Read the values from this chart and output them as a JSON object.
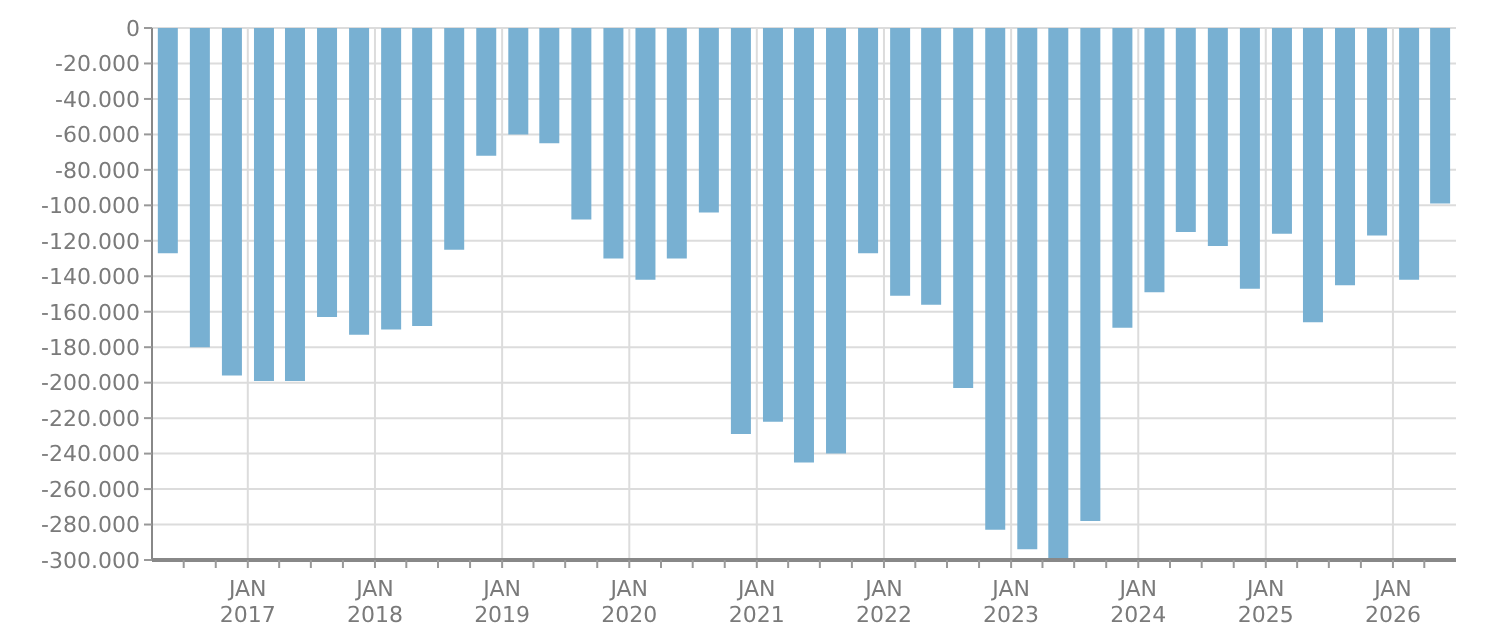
{
  "chart_data": {
    "type": "bar",
    "color": "#78b0d2",
    "grid": true,
    "x": [
      "2016-05-15",
      "2016-08-15",
      "2016-11-15",
      "2017-02-15",
      "2017-05-15",
      "2017-08-15",
      "2017-11-15",
      "2018-02-15",
      "2018-05-15",
      "2018-08-15",
      "2018-11-15",
      "2019-02-15",
      "2019-05-15",
      "2019-08-15",
      "2019-11-15",
      "2020-02-15",
      "2020-05-15",
      "2020-08-15",
      "2020-11-15",
      "2021-02-15",
      "2021-05-15",
      "2021-08-15",
      "2021-11-15",
      "2022-02-15",
      "2022-05-15",
      "2022-08-15",
      "2022-11-15",
      "2023-02-15",
      "2023-05-15",
      "2023-08-15",
      "2023-11-15",
      "2024-02-15",
      "2024-05-15",
      "2024-08-15",
      "2024-11-15",
      "2025-02-15",
      "2025-05-15",
      "2025-08-15",
      "2025-11-15",
      "2026-02-15",
      "2026-05-15"
    ],
    "values": [
      -127000,
      -180000,
      -196000,
      -199000,
      -199000,
      -163000,
      -173000,
      -170000,
      -168000,
      -125000,
      -72000,
      -60000,
      -65000,
      -108000,
      -130000,
      -142000,
      -130000,
      -104000,
      -229000,
      -222000,
      -245000,
      -240000,
      -127000,
      -151000,
      -156000,
      -203000,
      -283000,
      -294000,
      -300000,
      -278000,
      -169000,
      -149000,
      -115000,
      -123000,
      -147000,
      -116000,
      -166000,
      -145000,
      -117000,
      -142000,
      -99000
    ],
    "xlim": [
      "2016-04-01",
      "2026-07-01"
    ],
    "xticks": [
      {
        "value": "2016-07-01",
        "label": null
      },
      {
        "value": "2016-10-01",
        "label": null
      },
      {
        "value": "2017-01-01",
        "label": "JAN\n2017"
      },
      {
        "value": "2017-04-01",
        "label": null
      },
      {
        "value": "2017-07-01",
        "label": null
      },
      {
        "value": "2017-10-01",
        "label": null
      },
      {
        "value": "2018-01-01",
        "label": "JAN\n2018"
      },
      {
        "value": "2018-04-01",
        "label": null
      },
      {
        "value": "2018-07-01",
        "label": null
      },
      {
        "value": "2018-10-01",
        "label": null
      },
      {
        "value": "2019-01-01",
        "label": "JAN\n2019"
      },
      {
        "value": "2019-04-01",
        "label": null
      },
      {
        "value": "2019-07-01",
        "label": null
      },
      {
        "value": "2019-10-01",
        "label": null
      },
      {
        "value": "2020-01-01",
        "label": "JAN\n2020"
      },
      {
        "value": "2020-04-01",
        "label": null
      },
      {
        "value": "2020-07-01",
        "label": null
      },
      {
        "value": "2020-10-01",
        "label": null
      },
      {
        "value": "2021-01-01",
        "label": "JAN\n2021"
      },
      {
        "value": "2021-04-01",
        "label": null
      },
      {
        "value": "2021-07-01",
        "label": null
      },
      {
        "value": "2021-10-01",
        "label": null
      },
      {
        "value": "2022-01-01",
        "label": "JAN\n2022"
      },
      {
        "value": "2022-04-01",
        "label": null
      },
      {
        "value": "2022-07-01",
        "label": null
      },
      {
        "value": "2022-10-01",
        "label": null
      },
      {
        "value": "2023-01-01",
        "label": "JAN\n2023"
      },
      {
        "value": "2023-04-01",
        "label": null
      },
      {
        "value": "2023-07-01",
        "label": null
      },
      {
        "value": "2023-10-01",
        "label": null
      },
      {
        "value": "2024-01-01",
        "label": "JAN\n2024"
      },
      {
        "value": "2024-04-01",
        "label": null
      },
      {
        "value": "2024-07-01",
        "label": null
      },
      {
        "value": "2024-10-01",
        "label": null
      },
      {
        "value": "2025-01-01",
        "label": "JAN\n2025"
      },
      {
        "value": "2025-04-01",
        "label": null
      },
      {
        "value": "2025-07-01",
        "label": null
      },
      {
        "value": "2025-10-01",
        "label": null
      },
      {
        "value": "2026-01-01",
        "label": "JAN\n2026"
      },
      {
        "value": "2026-04-01",
        "label": null
      }
    ],
    "ylim": [
      -300000,
      0
    ],
    "yticks": [
      {
        "value": -300000,
        "label": "-300.000"
      },
      {
        "value": -280000,
        "label": "-280.000"
      },
      {
        "value": -260000,
        "label": "-260.000"
      },
      {
        "value": -240000,
        "label": "-240.000"
      },
      {
        "value": -220000,
        "label": "-220.000"
      },
      {
        "value": -200000,
        "label": "-200.000"
      },
      {
        "value": -180000,
        "label": "-180.000"
      },
      {
        "value": -160000,
        "label": "-160.000"
      },
      {
        "value": -140000,
        "label": "-140.000"
      },
      {
        "value": -120000,
        "label": "-120.000"
      },
      {
        "value": -100000,
        "label": "-100.000"
      },
      {
        "value": -80000,
        "label": "-80.000"
      },
      {
        "value": -60000,
        "label": "-60.000"
      },
      {
        "value": -40000,
        "label": "-40.000"
      },
      {
        "value": -20000,
        "label": "-20.000"
      },
      0
    ]
  }
}
